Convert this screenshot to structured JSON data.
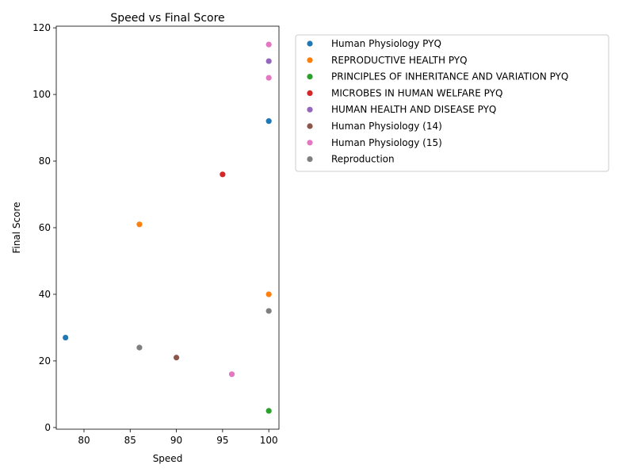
{
  "chart_data": {
    "type": "scatter",
    "title": "Speed vs Final Score",
    "xlabel": "Speed",
    "ylabel": "Final Score",
    "xlim": [
      77.0,
      101.1
    ],
    "ylim": [
      -0.5,
      120.5
    ],
    "xticks": [
      80,
      85,
      90,
      95,
      100
    ],
    "yticks": [
      0,
      20,
      40,
      60,
      80,
      100,
      120
    ],
    "grid": false,
    "legend_position": "outside-upper-right",
    "series": [
      {
        "name": "Human Physiology PYQ",
        "color": "#1f77b4",
        "points": [
          {
            "x": 100,
            "y": 92
          },
          {
            "x": 78,
            "y": 27
          }
        ]
      },
      {
        "name": "REPRODUCTIVE HEALTH PYQ",
        "color": "#ff7f0e",
        "points": [
          {
            "x": 86,
            "y": 61
          },
          {
            "x": 100,
            "y": 40
          }
        ]
      },
      {
        "name": "PRINCIPLES OF INHERITANCE AND VARIATION PYQ",
        "color": "#2ca02c",
        "points": [
          {
            "x": 100,
            "y": 5
          }
        ]
      },
      {
        "name": "MICROBES IN HUMAN WELFARE  PYQ",
        "color": "#d62728",
        "points": [
          {
            "x": 95,
            "y": 76
          }
        ]
      },
      {
        "name": "HUMAN HEALTH AND DISEASE PYQ",
        "color": "#9467bd",
        "points": [
          {
            "x": 100,
            "y": 110
          }
        ]
      },
      {
        "name": "Human Physiology (14)",
        "color": "#8c564b",
        "points": [
          {
            "x": 90,
            "y": 21
          }
        ]
      },
      {
        "name": "Human Physiology (15)",
        "color": "#e377c2",
        "points": [
          {
            "x": 100,
            "y": 115
          },
          {
            "x": 100,
            "y": 105
          },
          {
            "x": 96,
            "y": 16
          }
        ]
      },
      {
        "name": "Reproduction",
        "color": "#7f7f7f",
        "points": [
          {
            "x": 100,
            "y": 35
          },
          {
            "x": 86,
            "y": 24
          }
        ]
      }
    ]
  }
}
